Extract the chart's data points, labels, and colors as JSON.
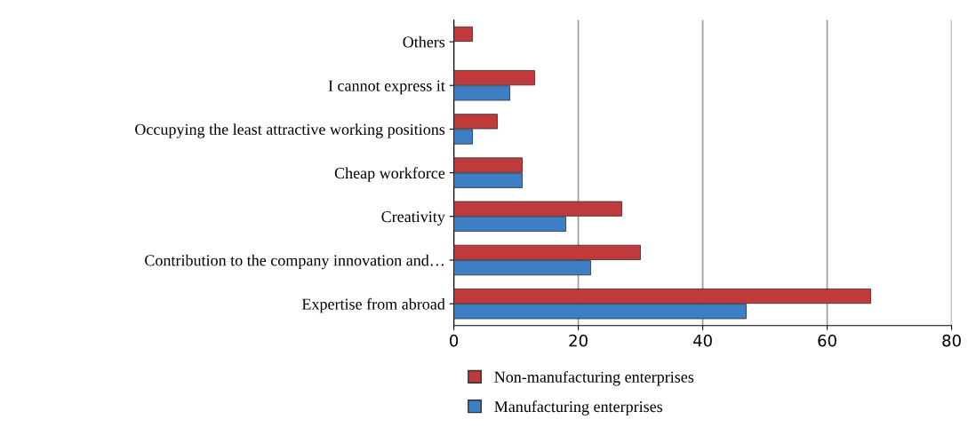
{
  "chart_data": {
    "type": "bar",
    "orientation": "horizontal",
    "categories": [
      "Others",
      "I cannot express it",
      "Occupying the least attractive working positions",
      "Cheap workforce",
      "Creativity",
      "Contribution to the company innovation and…",
      "Expertise from abroad"
    ],
    "series": [
      {
        "name": "Non-manufacturing enterprises",
        "color": "#c0393b",
        "values": [
          3,
          13,
          7,
          11,
          27,
          30,
          67
        ]
      },
      {
        "name": "Manufacturing enterprises",
        "color": "#3d7fc4",
        "values": [
          null,
          9,
          3,
          11,
          18,
          22,
          47
        ]
      }
    ],
    "xlim": [
      0,
      80
    ],
    "xticks": [
      0,
      20,
      40,
      60,
      80
    ],
    "grid": "x",
    "legend": "bottom"
  }
}
